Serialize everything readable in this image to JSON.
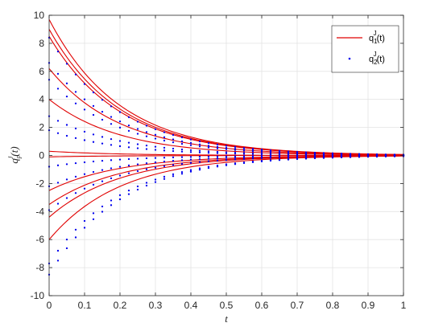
{
  "chart_data": {
    "type": "line",
    "xlabel": "t",
    "ylabel": "q_p^J(t)",
    "xlim": [
      0,
      1
    ],
    "ylim": [
      -10,
      10
    ],
    "x_ticks": [
      "0",
      "0.1",
      "0.2",
      "0.3",
      "0.4",
      "0.5",
      "0.6",
      "0.7",
      "0.8",
      "0.9",
      "1"
    ],
    "y_ticks": [
      "-10",
      "-8",
      "-6",
      "-4",
      "-2",
      "0",
      "2",
      "4",
      "6",
      "8",
      "10"
    ],
    "grid": true,
    "legend_position": "top-right",
    "legend": [
      {
        "base": "q",
        "sup": "J",
        "sub": "1",
        "suffix": "(t)",
        "style": "solid-line",
        "color": "#e00000"
      },
      {
        "base": "q",
        "sup": "J",
        "sub": "2",
        "suffix": "(t)",
        "style": "dotted",
        "color": "#0000ee"
      }
    ],
    "decay_rate": 5,
    "x": [
      0,
      0.1,
      0.2,
      0.3,
      0.4,
      0.5,
      0.6,
      0.7,
      0.8,
      0.9,
      1.0
    ],
    "series": [
      {
        "series_key": "q1",
        "color": "#e00000",
        "style": "line",
        "values": [
          9.7,
          5.88,
          3.57,
          2.16,
          1.31,
          0.8,
          0.48,
          0.29,
          0.18,
          0.11,
          0.07
        ]
      },
      {
        "series_key": "q1",
        "color": "#e00000",
        "style": "line",
        "values": [
          9.0,
          5.46,
          3.31,
          2.01,
          1.22,
          0.74,
          0.45,
          0.27,
          0.16,
          0.1,
          0.06
        ]
      },
      {
        "series_key": "q1",
        "color": "#e00000",
        "style": "line",
        "values": [
          8.5,
          5.16,
          3.13,
          1.9,
          1.15,
          0.7,
          0.42,
          0.26,
          0.16,
          0.09,
          0.06
        ]
      },
      {
        "series_key": "q1",
        "color": "#e00000",
        "style": "line",
        "values": [
          6.2,
          3.76,
          2.28,
          1.38,
          0.84,
          0.51,
          0.31,
          0.19,
          0.11,
          0.07,
          0.04
        ]
      },
      {
        "series_key": "q1",
        "color": "#e00000",
        "style": "line",
        "values": [
          4.0,
          2.43,
          1.47,
          0.89,
          0.54,
          0.33,
          0.2,
          0.12,
          0.07,
          0.04,
          0.03
        ]
      },
      {
        "series_key": "q1",
        "color": "#e00000",
        "style": "line",
        "values": [
          0.3,
          0.18,
          0.11,
          0.07,
          0.04,
          0.02,
          0.01,
          0.01,
          0.01,
          0.0,
          0.0
        ]
      },
      {
        "series_key": "q1",
        "color": "#e00000",
        "style": "line",
        "values": [
          -0.1,
          -0.06,
          -0.04,
          -0.02,
          -0.01,
          -0.01,
          0.0,
          0.0,
          0.0,
          0.0,
          0.0
        ]
      },
      {
        "series_key": "q1",
        "color": "#e00000",
        "style": "line",
        "values": [
          -2.5,
          -1.52,
          -0.92,
          -0.56,
          -0.34,
          -0.21,
          -0.12,
          -0.08,
          -0.05,
          -0.03,
          -0.02
        ]
      },
      {
        "series_key": "q1",
        "color": "#e00000",
        "style": "line",
        "values": [
          -3.5,
          -2.12,
          -1.29,
          -0.78,
          -0.47,
          -0.29,
          -0.17,
          -0.11,
          -0.06,
          -0.04,
          -0.02
        ]
      },
      {
        "series_key": "q1",
        "color": "#e00000",
        "style": "line",
        "values": [
          -4.4,
          -2.67,
          -1.62,
          -0.98,
          -0.6,
          -0.36,
          -0.22,
          -0.13,
          -0.08,
          -0.05,
          -0.03
        ]
      },
      {
        "series_key": "q1",
        "color": "#e00000",
        "style": "line",
        "values": [
          -6.0,
          -3.64,
          -2.21,
          -1.34,
          -0.81,
          -0.49,
          -0.3,
          -0.18,
          -0.11,
          -0.07,
          -0.04
        ]
      },
      {
        "series_key": "q2",
        "color": "#0000ee",
        "style": "dots",
        "values": [
          8.4,
          5.09,
          3.09,
          1.87,
          1.14,
          0.69,
          0.42,
          0.25,
          0.15,
          0.09,
          0.06
        ]
      },
      {
        "series_key": "q2",
        "color": "#0000ee",
        "style": "dots",
        "values": [
          6.6,
          4.0,
          2.43,
          1.47,
          0.89,
          0.54,
          0.33,
          0.2,
          0.12,
          0.07,
          0.04
        ]
      },
      {
        "series_key": "q2",
        "color": "#0000ee",
        "style": "dots",
        "values": [
          5.4,
          3.28,
          1.99,
          1.2,
          0.73,
          0.44,
          0.27,
          0.16,
          0.1,
          0.06,
          0.04
        ]
      },
      {
        "series_key": "q2",
        "color": "#0000ee",
        "style": "dots",
        "values": [
          2.8,
          1.7,
          1.03,
          0.62,
          0.38,
          0.23,
          0.14,
          0.08,
          0.05,
          0.03,
          0.02
        ]
      },
      {
        "series_key": "q2",
        "color": "#0000ee",
        "style": "dots",
        "values": [
          1.8,
          1.09,
          0.66,
          0.4,
          0.24,
          0.15,
          0.09,
          0.05,
          0.03,
          0.02,
          0.01
        ]
      },
      {
        "series_key": "q2",
        "color": "#0000ee",
        "style": "dots",
        "values": [
          -0.8,
          -0.49,
          -0.29,
          -0.18,
          -0.11,
          -0.07,
          -0.04,
          -0.02,
          -0.01,
          -0.01,
          -0.01
        ]
      },
      {
        "series_key": "q2",
        "color": "#0000ee",
        "style": "dots",
        "values": [
          -2.2,
          -1.33,
          -0.81,
          -0.49,
          -0.3,
          -0.18,
          -0.11,
          -0.07,
          -0.04,
          -0.02,
          -0.01
        ]
      },
      {
        "series_key": "q2",
        "color": "#0000ee",
        "style": "dots",
        "values": [
          -3.9,
          -2.37,
          -1.43,
          -0.87,
          -0.53,
          -0.32,
          -0.19,
          -0.12,
          -0.07,
          -0.04,
          -0.03
        ]
      },
      {
        "series_key": "q2",
        "color": "#0000ee",
        "style": "dots",
        "values": [
          -7.7,
          -4.67,
          -2.83,
          -1.72,
          -1.04,
          -0.63,
          -0.38,
          -0.23,
          -0.14,
          -0.09,
          -0.05
        ]
      },
      {
        "series_key": "q2",
        "color": "#0000ee",
        "style": "dots",
        "values": [
          -8.5,
          -5.16,
          -3.13,
          -1.9,
          -1.15,
          -0.7,
          -0.42,
          -0.26,
          -0.16,
          -0.09,
          -0.06
        ]
      }
    ]
  }
}
